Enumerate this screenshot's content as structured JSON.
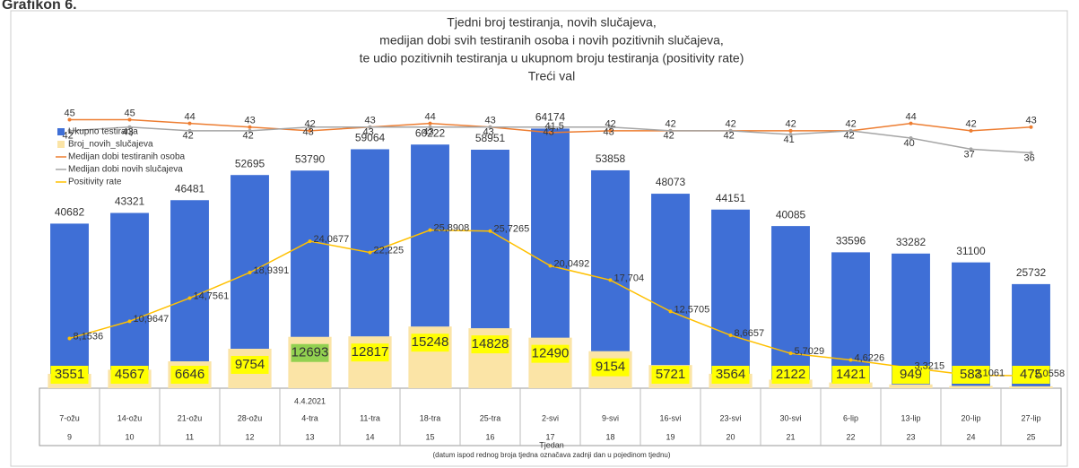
{
  "chart_data": {
    "type": "combo",
    "caption": "Grafikon 6.",
    "title": [
      "Tjedni broj testiranja, novih slučajeva,",
      "medijan dobi svih testiranih osoba i novih pozitivnih slučajeva,",
      "te udio pozitivnih testiranja u ukupnom broju testiranja (positivity rate)",
      "Treći val"
    ],
    "categories": [
      "7-ožu",
      "14-ožu",
      "21-ožu",
      "28-ožu",
      "4-tra",
      "11-tra",
      "18-tra",
      "25-tra",
      "2-svi",
      "9-svi",
      "16-svi",
      "23-svi",
      "30-svi",
      "6-lip",
      "13-lip",
      "20-lip",
      "27-lip"
    ],
    "weeks": [
      "9",
      "10",
      "11",
      "12",
      "13",
      "14",
      "15",
      "16",
      "17",
      "18",
      "19",
      "20",
      "21",
      "22",
      "23",
      "24",
      "25"
    ],
    "date_note": "4.4.2021",
    "xlabel": "Tjedan",
    "xlabel_note": "(datum ispod rednog broja tjedna označava zadnji dan u pojedinom tjednu)",
    "ylim": [
      0,
      80000
    ],
    "y2lim": [
      -28,
      60
    ],
    "y3lim": [
      0,
      53
    ],
    "series": [
      {
        "name": "Ukupno testiranja",
        "color": "#3f6fd6",
        "kind": "bar",
        "values": [
          40682,
          43321,
          46481,
          52695,
          53790,
          59064,
          60222,
          58951,
          64174,
          53858,
          48073,
          44151,
          40085,
          33596,
          33282,
          31100,
          25732
        ]
      },
      {
        "name": "Broj_novih_slučajeva",
        "color": "#fbe4a6",
        "kind": "bar",
        "values": [
          3551,
          4567,
          6646,
          9754,
          12693,
          12817,
          15248,
          14828,
          12490,
          9154,
          5721,
          3564,
          2122,
          1421,
          949,
          583,
          475
        ],
        "label_colors": [
          "#ffff00",
          "#ffff00",
          "#ffff00",
          "#ffff00",
          "#92d050",
          "#ffff00",
          "#ffff00",
          "#ffff00",
          "#ffff00",
          "#ffff00",
          "#ffff00",
          "#ffff00",
          "#ffff00",
          "#ffff00",
          "#ffff00",
          "#ffff00",
          "#ffff00"
        ]
      },
      {
        "name": "Medijan dobi testiranih osoba",
        "color": "#ed7d31",
        "kind": "line",
        "axis": "y2",
        "values": [
          45,
          45,
          44,
          43,
          42,
          43,
          44,
          43,
          41.5,
          42,
          42,
          42,
          42,
          42,
          44,
          42,
          43
        ],
        "value_labels": [
          "45",
          "45",
          "44",
          "43",
          "42",
          "43",
          "44",
          "43",
          "41,5",
          "42",
          "42",
          "42",
          "42",
          "42",
          "44",
          "42",
          "43"
        ]
      },
      {
        "name": "Medijan dobi novih slučajeva",
        "color": "#a5a5a5",
        "kind": "line",
        "axis": "y2",
        "values": [
          42,
          43,
          42,
          42,
          43,
          43,
          43,
          43,
          43,
          43,
          42,
          42,
          41,
          42,
          40,
          37,
          36
        ]
      },
      {
        "name": "Positivity rate",
        "color": "#ffc000",
        "kind": "line",
        "axis": "y3",
        "values": [
          8.1536,
          10.9647,
          14.7561,
          18.9391,
          24.0677,
          22.225,
          25.8908,
          25.7265,
          20.0492,
          17.704,
          12.5705,
          8.6657,
          5.7029,
          4.6226,
          3.3215,
          2.1061,
          2.0558
        ],
        "value_labels": [
          "8,1536",
          "10,9647",
          "14,7561",
          "18,9391",
          "24,0677",
          "22,225",
          "25,8908",
          "25,7265",
          "20,0492",
          "17,704",
          "12,5705",
          "8,6657",
          "5,7029",
          "4,6226",
          "3,3215",
          "2,1061",
          "2,0558"
        ]
      }
    ]
  }
}
